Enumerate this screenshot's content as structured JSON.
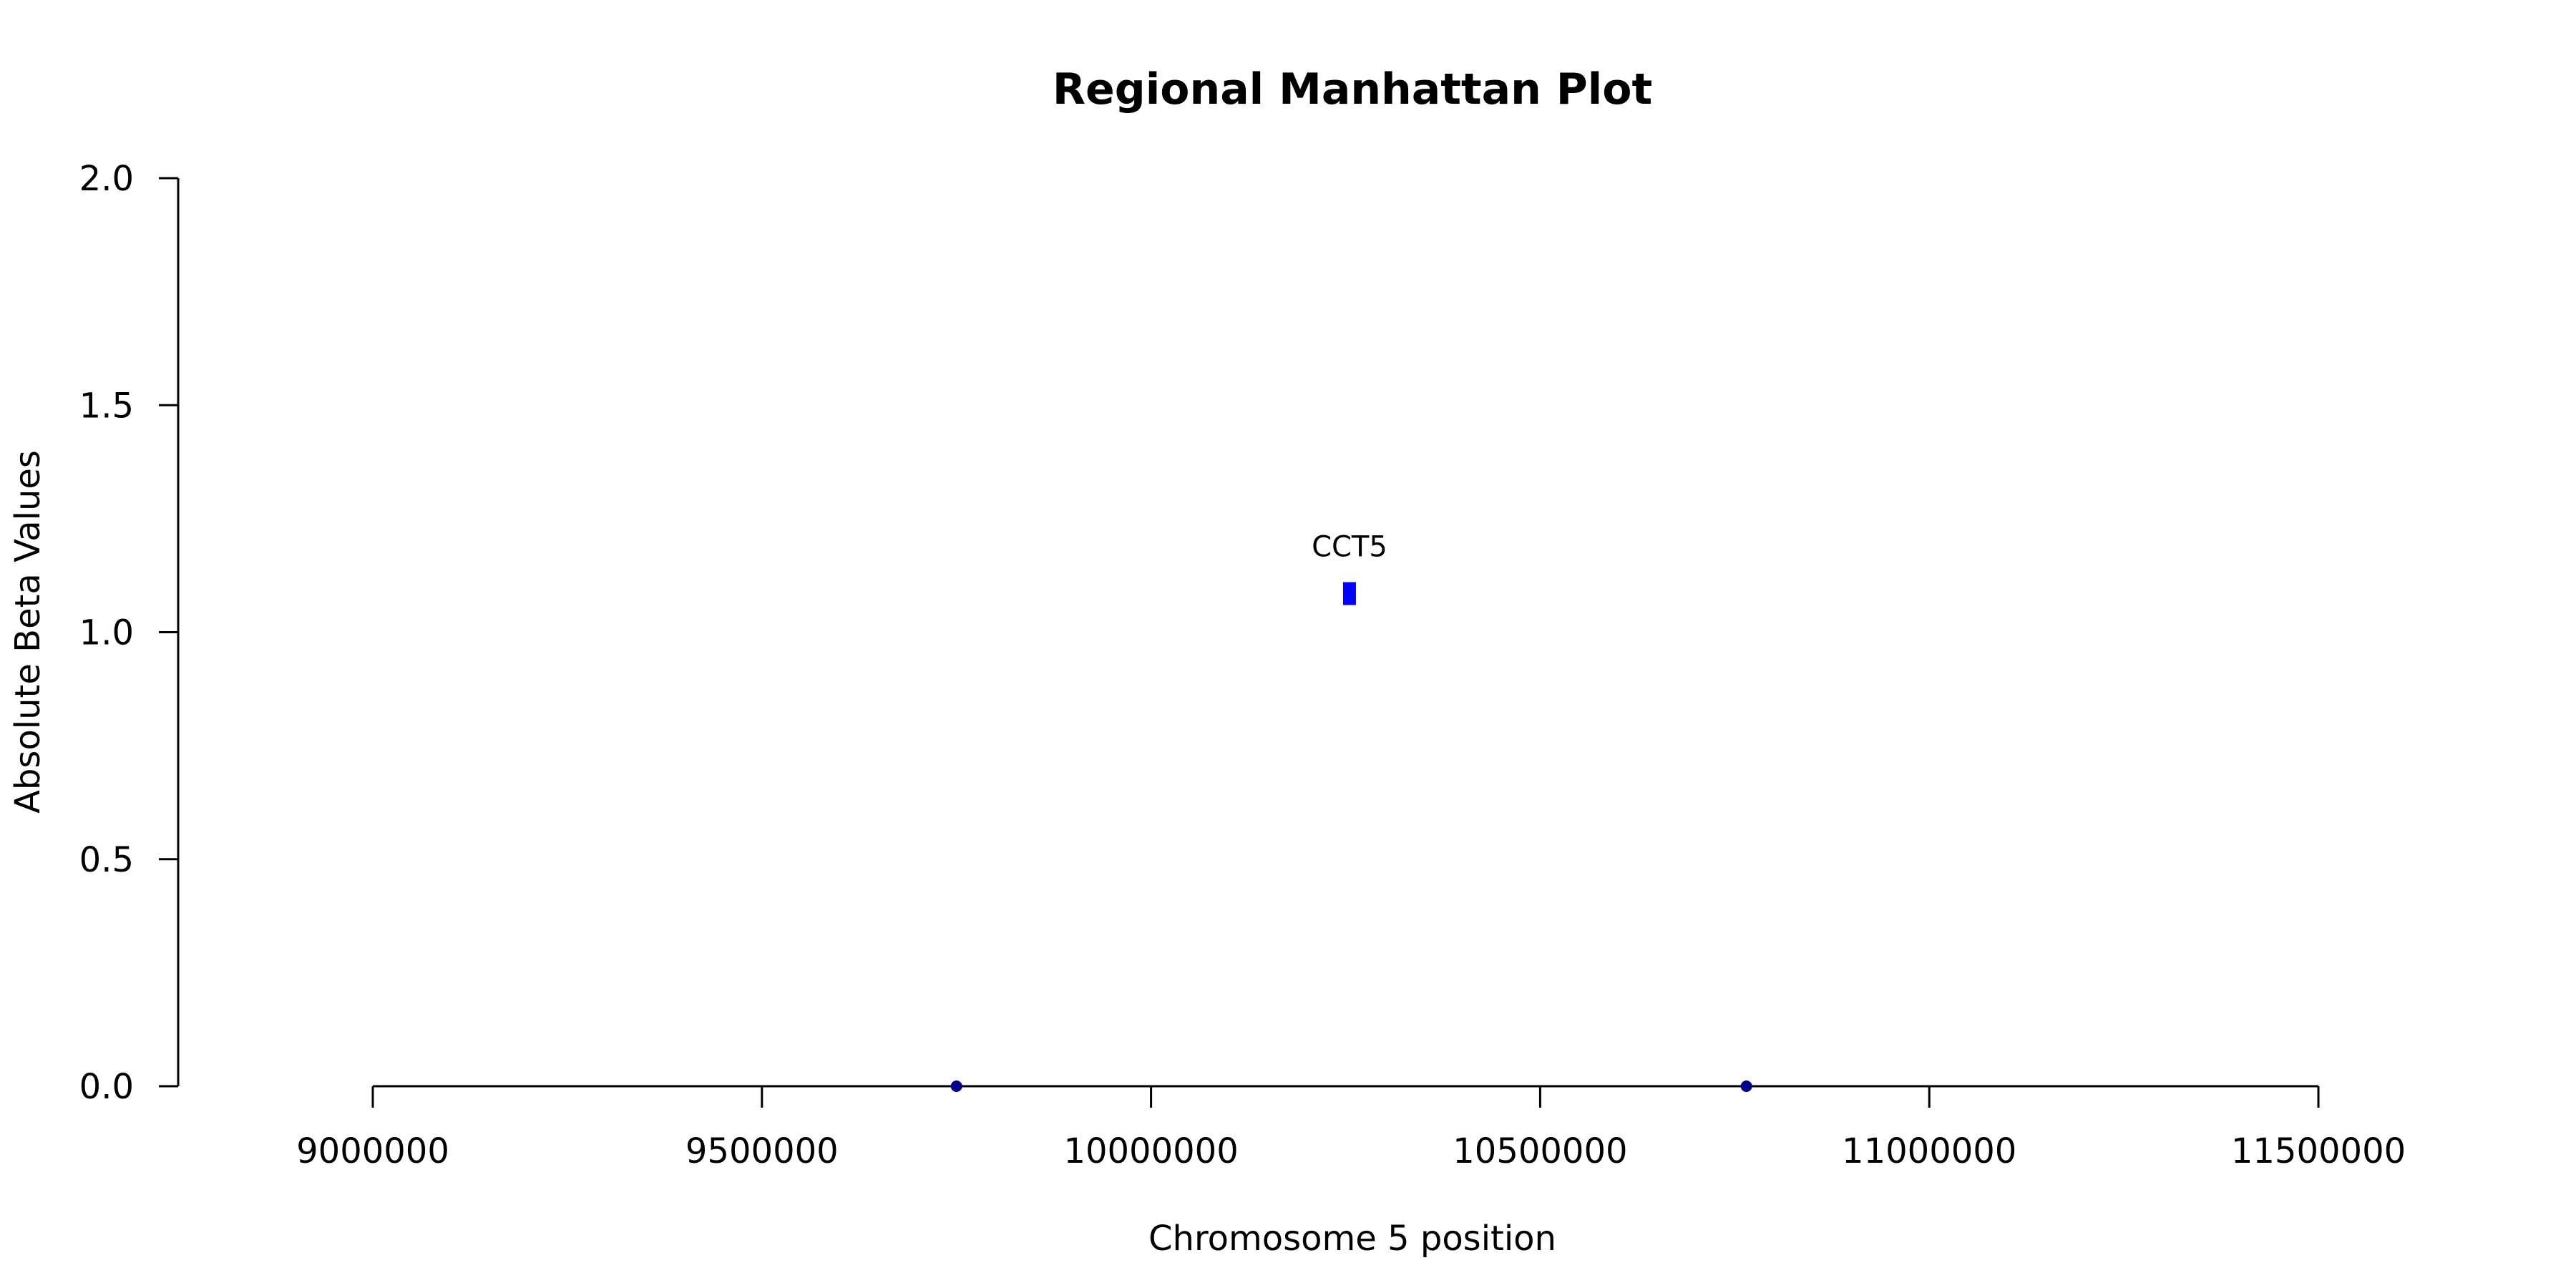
{
  "chart_data": {
    "type": "scatter",
    "title": "Regional Manhattan Plot",
    "xlabel": "Chromosome 5 position",
    "ylabel": "Absolute Beta Values",
    "xlim": [
      9000000,
      11500000
    ],
    "ylim": [
      0,
      2
    ],
    "x_ticks": [
      9000000,
      9500000,
      10000000,
      10500000,
      11000000,
      11500000
    ],
    "y_ticks": [
      0.0,
      0.5,
      1.0,
      1.5,
      2.0
    ],
    "x_tick_labels": [
      "9000000",
      "9500000",
      "10000000",
      "10500000",
      "11000000",
      "11500000"
    ],
    "y_tick_labels": [
      "0.0",
      "0.5",
      "1.0",
      "1.5",
      "2.0"
    ],
    "grid": false,
    "points": [
      {
        "x": 9750000,
        "y": 0.0,
        "color": "#00008B"
      },
      {
        "x": 10765000,
        "y": 0.0,
        "color": "#00008B"
      }
    ],
    "highlight": {
      "label": "CCT5",
      "x": 10255000,
      "y": 1.085,
      "color": "#0000FF"
    }
  }
}
